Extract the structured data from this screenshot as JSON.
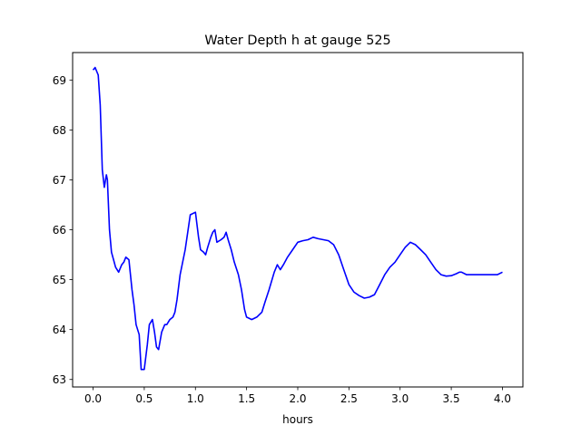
{
  "chart_data": {
    "type": "line",
    "title": "Water Depth h at gauge 525",
    "xlabel": "hours",
    "ylabel": "",
    "xlim": [
      -0.2,
      4.2
    ],
    "ylim": [
      62.85,
      69.55
    ],
    "xticks": [
      0.0,
      0.5,
      1.0,
      1.5,
      2.0,
      2.5,
      3.0,
      3.5,
      4.0
    ],
    "xtick_labels": [
      "0.0",
      "0.5",
      "1.0",
      "1.5",
      "2.0",
      "2.5",
      "3.0",
      "3.5",
      "4.0"
    ],
    "yticks": [
      63,
      64,
      65,
      66,
      67,
      68,
      69
    ],
    "ytick_labels": [
      "63",
      "64",
      "65",
      "66",
      "67",
      "68",
      "69"
    ],
    "grid": false,
    "series": [
      {
        "color": "#0000ff",
        "x": [
          0.0,
          0.02,
          0.05,
          0.07,
          0.09,
          0.11,
          0.13,
          0.14,
          0.16,
          0.18,
          0.2,
          0.22,
          0.25,
          0.28,
          0.3,
          0.32,
          0.35,
          0.38,
          0.4,
          0.42,
          0.45,
          0.47,
          0.5,
          0.53,
          0.55,
          0.58,
          0.6,
          0.62,
          0.64,
          0.67,
          0.7,
          0.72,
          0.75,
          0.78,
          0.8,
          0.82,
          0.85,
          0.9,
          0.95,
          1.0,
          1.03,
          1.05,
          1.08,
          1.1,
          1.12,
          1.15,
          1.17,
          1.19,
          1.21,
          1.25,
          1.28,
          1.3,
          1.32,
          1.35,
          1.38,
          1.42,
          1.45,
          1.48,
          1.5,
          1.55,
          1.6,
          1.65,
          1.68,
          1.72,
          1.77,
          1.8,
          1.83,
          1.86,
          1.9,
          1.95,
          2.0,
          2.05,
          2.1,
          2.15,
          2.2,
          2.25,
          2.3,
          2.35,
          2.4,
          2.45,
          2.5,
          2.55,
          2.6,
          2.65,
          2.7,
          2.75,
          2.8,
          2.85,
          2.9,
          2.95,
          3.0,
          3.05,
          3.1,
          3.15,
          3.2,
          3.25,
          3.3,
          3.35,
          3.4,
          3.45,
          3.5,
          3.55,
          3.58,
          3.6,
          3.65,
          3.7,
          3.75,
          3.8,
          3.85,
          3.9,
          3.95,
          4.0
        ],
        "y": [
          69.2,
          69.25,
          69.1,
          68.5,
          67.2,
          66.85,
          67.1,
          67.0,
          66.0,
          65.55,
          65.4,
          65.25,
          65.15,
          65.3,
          65.35,
          65.45,
          65.4,
          64.8,
          64.5,
          64.1,
          63.9,
          63.2,
          63.2,
          63.7,
          64.1,
          64.2,
          63.95,
          63.65,
          63.6,
          63.95,
          64.1,
          64.1,
          64.2,
          64.25,
          64.35,
          64.6,
          65.1,
          65.6,
          66.3,
          66.35,
          65.85,
          65.6,
          65.55,
          65.5,
          65.65,
          65.85,
          65.95,
          66.0,
          65.75,
          65.8,
          65.85,
          65.95,
          65.8,
          65.6,
          65.35,
          65.1,
          64.8,
          64.4,
          64.25,
          64.2,
          64.25,
          64.35,
          64.55,
          64.8,
          65.15,
          65.3,
          65.2,
          65.3,
          65.45,
          65.6,
          65.75,
          65.78,
          65.8,
          65.85,
          65.82,
          65.8,
          65.78,
          65.7,
          65.5,
          65.2,
          64.9,
          64.75,
          64.68,
          64.63,
          64.65,
          64.7,
          64.9,
          65.1,
          65.25,
          65.35,
          65.5,
          65.65,
          65.75,
          65.7,
          65.6,
          65.5,
          65.35,
          65.2,
          65.1,
          65.07,
          65.08,
          65.12,
          65.15,
          65.15,
          65.1,
          65.1,
          65.1,
          65.1,
          65.1,
          65.1,
          65.1,
          65.15
        ]
      }
    ]
  }
}
